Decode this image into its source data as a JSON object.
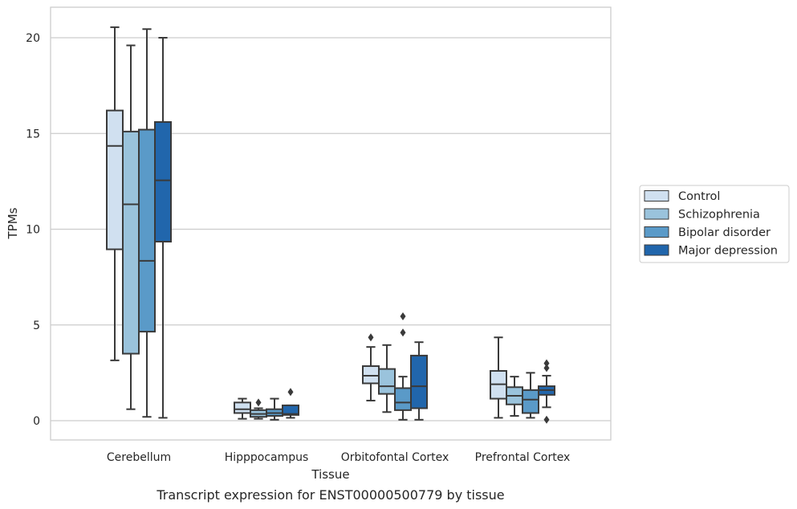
{
  "chart_data": {
    "type": "box",
    "caption": "Transcript expression for ENST00000500779 by tissue",
    "xlabel": "Tissue",
    "ylabel": "TPMs",
    "ylim": [
      -1,
      21.6
    ],
    "yticks": [
      0,
      5,
      10,
      15,
      20
    ],
    "grid": "horizontal",
    "legend_position": "right",
    "categories": [
      "Cerebellum",
      "Hipppocampus",
      "Orbitofontal Cortex",
      "Prefrontal Cortex"
    ],
    "series": [
      {
        "name": "Control",
        "color": "#d0e0f0",
        "boxes": [
          {
            "whisker_low": 3.15,
            "q1": 8.95,
            "median": 14.35,
            "q3": 16.2,
            "whisker_high": 20.55,
            "outliers": []
          },
          {
            "whisker_low": 0.1,
            "q1": 0.4,
            "median": 0.6,
            "q3": 0.95,
            "whisker_high": 1.15,
            "outliers": []
          },
          {
            "whisker_low": 1.05,
            "q1": 1.95,
            "median": 2.35,
            "q3": 2.85,
            "whisker_high": 3.85,
            "outliers": [
              4.35
            ]
          },
          {
            "whisker_low": 0.15,
            "q1": 1.15,
            "median": 1.9,
            "q3": 2.6,
            "whisker_high": 4.35,
            "outliers": []
          }
        ]
      },
      {
        "name": "Schizophrenia",
        "color": "#9ac3dc",
        "boxes": [
          {
            "whisker_low": 0.6,
            "q1": 3.5,
            "median": 11.3,
            "q3": 15.1,
            "whisker_high": 19.6,
            "outliers": []
          },
          {
            "whisker_low": 0.1,
            "q1": 0.2,
            "median": 0.35,
            "q3": 0.55,
            "whisker_high": 0.65,
            "outliers": [
              0.95
            ]
          },
          {
            "whisker_low": 0.45,
            "q1": 1.4,
            "median": 1.8,
            "q3": 2.7,
            "whisker_high": 3.95,
            "outliers": []
          },
          {
            "whisker_low": 0.25,
            "q1": 0.85,
            "median": 1.3,
            "q3": 1.75,
            "whisker_high": 2.3,
            "outliers": []
          }
        ]
      },
      {
        "name": "Bipolar disorder",
        "color": "#5a9ac8",
        "boxes": [
          {
            "whisker_low": 0.2,
            "q1": 4.65,
            "median": 8.35,
            "q3": 15.2,
            "whisker_high": 20.45,
            "outliers": []
          },
          {
            "whisker_low": 0.05,
            "q1": 0.25,
            "median": 0.4,
            "q3": 0.6,
            "whisker_high": 1.15,
            "outliers": []
          },
          {
            "whisker_low": 0.05,
            "q1": 0.55,
            "median": 0.95,
            "q3": 1.7,
            "whisker_high": 2.3,
            "outliers": [
              4.6,
              5.45
            ]
          },
          {
            "whisker_low": 0.15,
            "q1": 0.4,
            "median": 1.1,
            "q3": 1.6,
            "whisker_high": 2.5,
            "outliers": []
          }
        ]
      },
      {
        "name": "Major depression",
        "color": "#2166ac",
        "boxes": [
          {
            "whisker_low": 0.15,
            "q1": 9.35,
            "median": 12.55,
            "q3": 15.6,
            "whisker_high": 20.0,
            "outliers": []
          },
          {
            "whisker_low": 0.15,
            "q1": 0.3,
            "median": 0.35,
            "q3": 0.8,
            "whisker_high": 0.8,
            "outliers": [
              1.5
            ]
          },
          {
            "whisker_low": 0.05,
            "q1": 0.65,
            "median": 1.8,
            "q3": 3.4,
            "whisker_high": 4.1,
            "outliers": []
          },
          {
            "whisker_low": 0.7,
            "q1": 1.35,
            "median": 1.6,
            "q3": 1.8,
            "whisker_high": 2.35,
            "outliers": [
              0.05,
              2.75,
              3.0
            ]
          }
        ]
      }
    ]
  }
}
